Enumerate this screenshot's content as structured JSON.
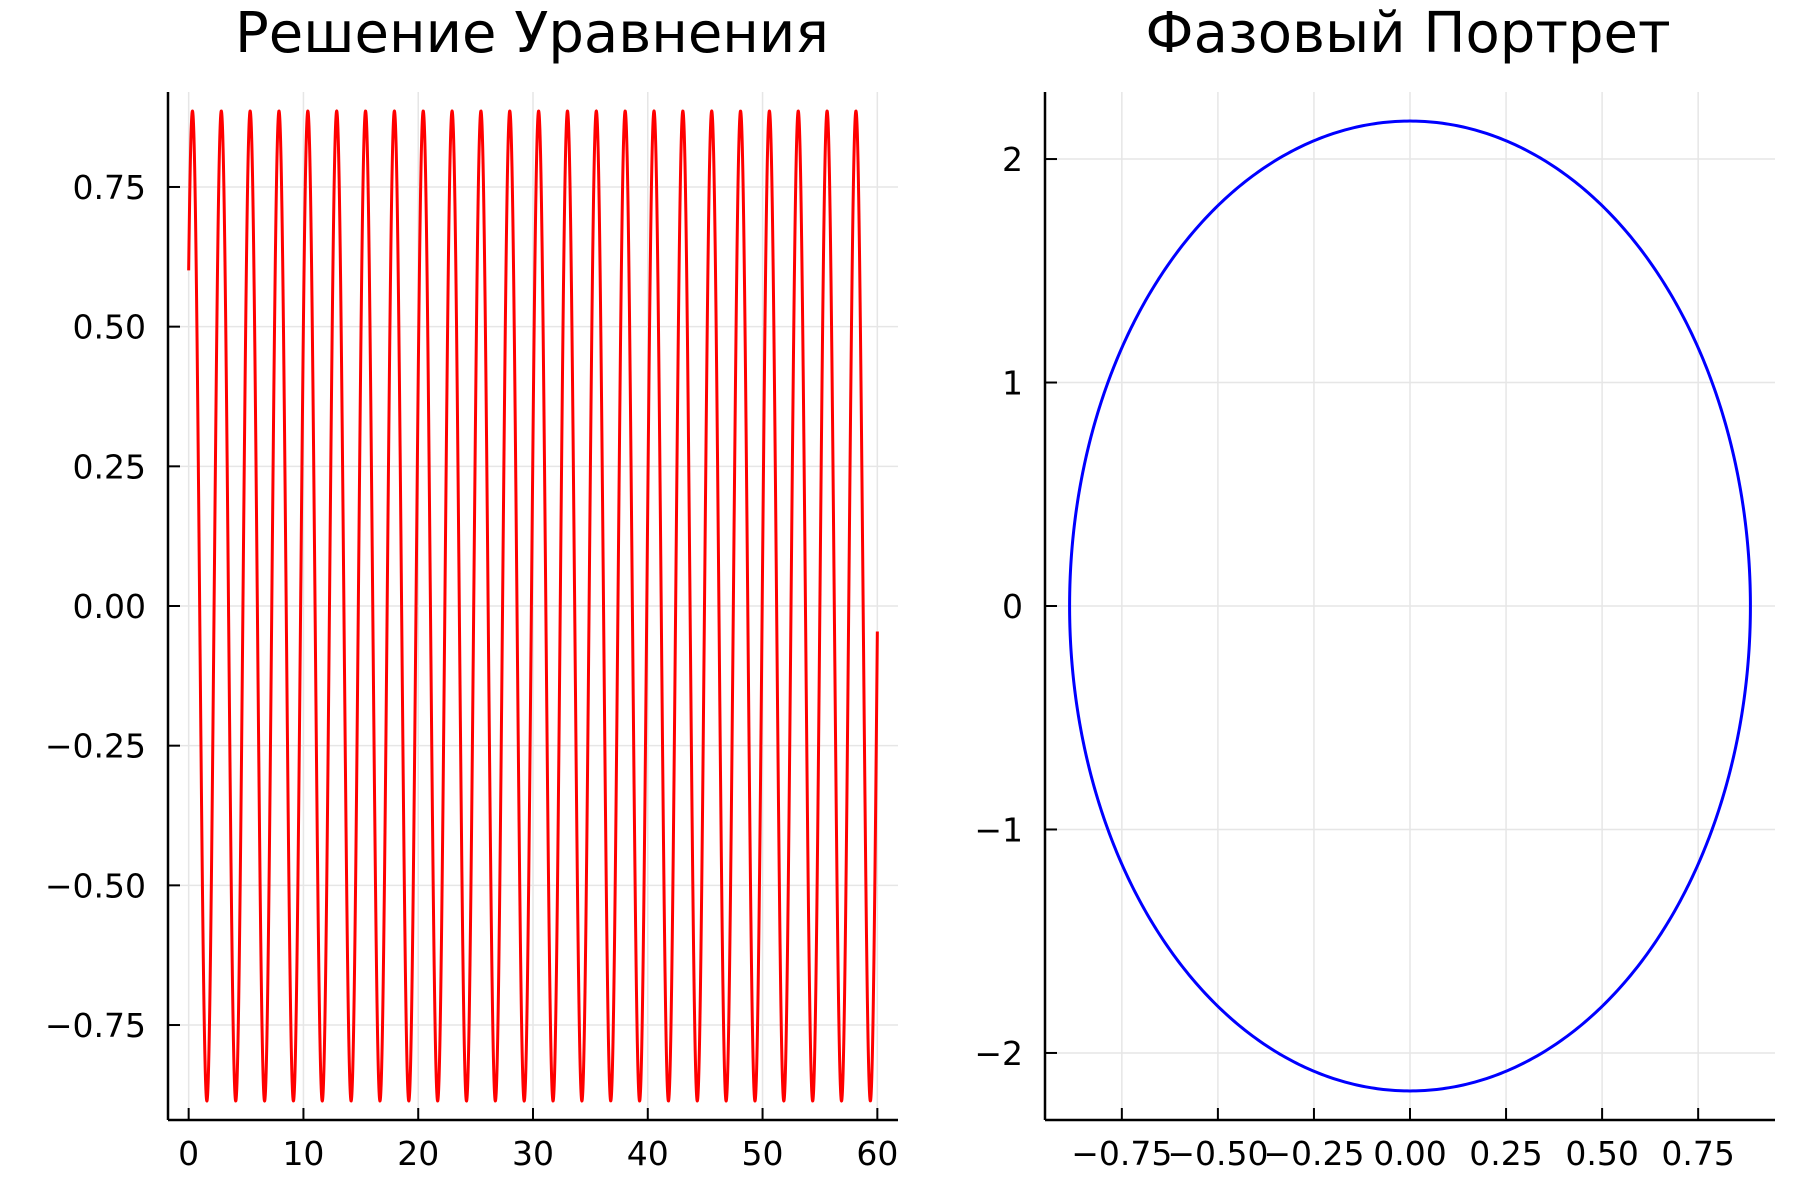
{
  "chart_data": [
    {
      "type": "line",
      "title": "Решение Уравнения",
      "xlabel": "",
      "ylabel": "",
      "xlim": [
        -1.8,
        61.8
      ],
      "ylim": [
        -0.92,
        0.92
      ],
      "xticks": [
        0,
        10,
        20,
        30,
        40,
        50,
        60
      ],
      "xtick_labels": [
        "0",
        "10",
        "20",
        "30",
        "40",
        "50",
        "60"
      ],
      "yticks": [
        0.75,
        0.5,
        0.25,
        0,
        -0.25,
        -0.5,
        -0.75
      ],
      "ytick_labels": [
        "0.75",
        "0.50",
        "0.25",
        "0.00",
        "−0.25",
        "−0.50",
        "−0.75"
      ],
      "grid": true,
      "legend": "none",
      "series": [
        {
          "color": "#ff0000",
          "function": "x(t) = 0.886 * sin(2.5 * t + 0.745)",
          "amplitude": 0.886,
          "angular_frequency": 2.5,
          "phase": 0.745,
          "t_range": [
            0,
            60
          ],
          "start_value": 0.6,
          "end_value": -0.05
        }
      ]
    },
    {
      "type": "line",
      "title": "Фазовый Портрет",
      "xlabel": "",
      "ylabel": "",
      "xlim": [
        -0.95,
        0.95
      ],
      "ylim": [
        -2.3,
        2.3
      ],
      "xticks": [
        -0.75,
        -0.5,
        -0.25,
        0,
        0.25,
        0.5,
        0.75
      ],
      "xtick_labels": [
        "−0.75",
        "−0.50",
        "−0.25",
        "0.00",
        "0.25",
        "0.50",
        "0.75"
      ],
      "yticks": [
        2,
        1,
        0,
        -1,
        -2
      ],
      "ytick_labels": [
        "2",
        "1",
        "0",
        "−1",
        "−2"
      ],
      "grid": true,
      "legend": "none",
      "series": [
        {
          "color": "#0000ff",
          "curve": "closed orbit (ellipse)",
          "x_amplitude": 0.886,
          "y_amplitude": 2.17,
          "center": [
            0,
            0
          ]
        }
      ]
    }
  ]
}
